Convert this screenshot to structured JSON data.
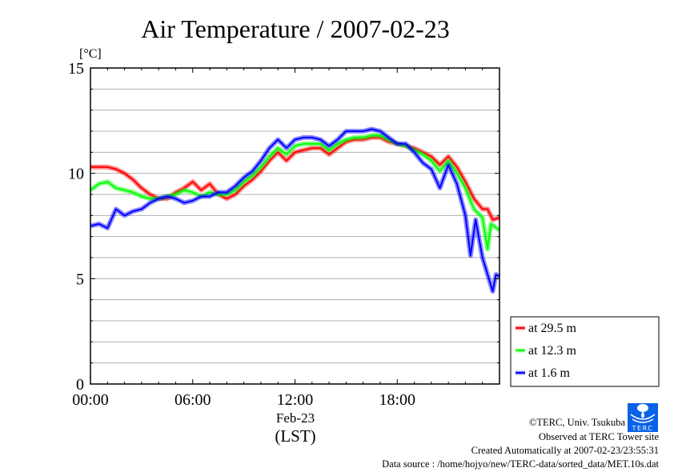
{
  "chart_data": {
    "type": "line",
    "title": "Air Temperature / 2007-02-23",
    "ylabel": "[°C]",
    "xlabel": "(LST)",
    "date_label": "Feb-23",
    "ylim": [
      0,
      15
    ],
    "xlim": [
      0,
      24
    ],
    "yticks": [
      0,
      5,
      10,
      15
    ],
    "ytick_labels": [
      "0",
      "5",
      "10",
      "15"
    ],
    "xticks": [
      0,
      6,
      12,
      18
    ],
    "xtick_labels": [
      "00:00",
      "06:00",
      "12:00",
      "18:00"
    ],
    "grid": true,
    "legend_position": "bottom-right-outside",
    "series": [
      {
        "name": "at 29.5 m",
        "color": "#ff0000",
        "x": [
          0,
          0.5,
          1,
          1.5,
          2,
          2.5,
          3,
          3.5,
          4,
          4.5,
          5,
          5.5,
          6,
          6.5,
          7,
          7.5,
          8,
          8.5,
          9,
          9.5,
          10,
          10.5,
          11,
          11.5,
          12,
          12.5,
          13,
          13.5,
          14,
          14.5,
          15,
          15.5,
          16,
          16.5,
          17,
          17.5,
          18,
          18.5,
          19,
          19.5,
          20,
          20.5,
          21,
          21.5,
          22,
          22.5,
          23,
          23.3,
          23.6,
          24
        ],
        "y": [
          10.3,
          10.3,
          10.3,
          10.2,
          10.0,
          9.7,
          9.3,
          9.0,
          8.8,
          8.8,
          9.1,
          9.3,
          9.6,
          9.2,
          9.5,
          9.0,
          8.8,
          9.0,
          9.4,
          9.7,
          10.1,
          10.6,
          11.0,
          10.6,
          11.0,
          11.1,
          11.2,
          11.2,
          10.9,
          11.2,
          11.5,
          11.6,
          11.6,
          11.7,
          11.7,
          11.5,
          11.4,
          11.3,
          11.2,
          11.0,
          10.8,
          10.4,
          10.8,
          10.3,
          9.6,
          8.8,
          8.3,
          8.3,
          7.8,
          7.9
        ]
      },
      {
        "name": "at 12.3 m",
        "color": "#00ff00",
        "x": [
          0,
          0.5,
          1,
          1.5,
          2,
          2.5,
          3,
          3.5,
          4,
          4.5,
          5,
          5.5,
          6,
          6.5,
          7,
          7.5,
          8,
          8.5,
          9,
          9.5,
          10,
          10.5,
          11,
          11.5,
          12,
          12.5,
          13,
          13.5,
          14,
          14.5,
          15,
          15.5,
          16,
          16.5,
          17,
          17.5,
          18,
          18.5,
          19,
          19.5,
          20,
          20.5,
          21,
          21.5,
          22,
          22.5,
          23,
          23.3,
          23.5,
          24
        ],
        "y": [
          9.2,
          9.5,
          9.6,
          9.3,
          9.2,
          9.1,
          8.9,
          8.8,
          8.8,
          8.9,
          9.0,
          9.2,
          9.1,
          8.9,
          9.1,
          9.0,
          9.0,
          9.2,
          9.6,
          9.9,
          10.3,
          10.8,
          11.2,
          10.9,
          11.3,
          11.4,
          11.4,
          11.4,
          11.1,
          11.4,
          11.6,
          11.7,
          11.7,
          11.8,
          11.8,
          11.6,
          11.4,
          11.3,
          11.1,
          10.9,
          10.6,
          10.1,
          10.6,
          10.0,
          9.3,
          8.3,
          7.9,
          6.4,
          7.6,
          7.3
        ]
      },
      {
        "name": "at 1.6 m",
        "color": "#0000ff",
        "x": [
          0,
          0.5,
          1,
          1.5,
          2,
          2.5,
          3,
          3.5,
          4,
          4.5,
          5,
          5.5,
          6,
          6.5,
          7,
          7.5,
          8,
          8.5,
          9,
          9.5,
          10,
          10.5,
          11,
          11.5,
          12,
          12.5,
          13,
          13.5,
          14,
          14.5,
          15,
          15.5,
          16,
          16.5,
          17,
          17.5,
          18,
          18.5,
          19,
          19.5,
          20,
          20.5,
          21,
          21.5,
          22,
          22.3,
          22.6,
          23,
          23.3,
          23.6,
          23.8,
          24
        ],
        "y": [
          7.5,
          7.6,
          7.4,
          8.3,
          8.0,
          8.2,
          8.3,
          8.6,
          8.8,
          8.9,
          8.8,
          8.6,
          8.7,
          8.9,
          8.9,
          9.1,
          9.1,
          9.4,
          9.8,
          10.1,
          10.6,
          11.2,
          11.6,
          11.2,
          11.6,
          11.7,
          11.7,
          11.6,
          11.3,
          11.6,
          12.0,
          12.0,
          12.0,
          12.1,
          12.0,
          11.7,
          11.4,
          11.4,
          11.0,
          10.5,
          10.2,
          9.3,
          10.4,
          9.5,
          8.0,
          6.1,
          7.8,
          6.0,
          5.2,
          4.4,
          5.2,
          5.1
        ]
      }
    ]
  },
  "footer": {
    "copyright": "©TERC, Univ. Tsukuba",
    "observed": "Observed at TERC Tower site",
    "created": "Created Automatically at 2007-02-23/23:55:31",
    "source": "Data source : /home/hojyo/new/TERC-data/sorted_data/MET.10s.dat",
    "logo_text": "TERC"
  }
}
